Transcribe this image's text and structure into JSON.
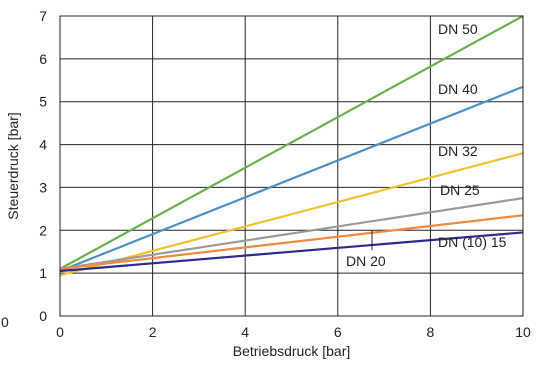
{
  "chart_data": {
    "type": "line",
    "xlabel": "Betriebsdruck [bar]",
    "ylabel": "Steuerdruck [bar]",
    "xlim": [
      0,
      10
    ],
    "ylim": [
      0,
      7
    ],
    "x_ticks": [
      0,
      2,
      4,
      6,
      8,
      10
    ],
    "y_ticks": [
      0,
      1,
      2,
      3,
      4,
      5,
      6,
      7
    ],
    "stray_tick_label": "0",
    "grid": true,
    "series": [
      {
        "name": "DN 50",
        "color": "#6ab04c",
        "x": [
          0,
          10
        ],
        "y": [
          1.1,
          7.0
        ]
      },
      {
        "name": "DN 40",
        "color": "#4a90c4",
        "x": [
          0,
          10
        ],
        "y": [
          1.05,
          5.35
        ]
      },
      {
        "name": "DN 32",
        "color": "#f2c12e",
        "x": [
          0,
          10
        ],
        "y": [
          0.95,
          3.8
        ]
      },
      {
        "name": "DN 25",
        "color": "#9a9a9a",
        "x": [
          0,
          10
        ],
        "y": [
          1.1,
          2.75
        ]
      },
      {
        "name": "DN 20",
        "color": "#f08a3e",
        "x": [
          0,
          10
        ],
        "y": [
          1.1,
          2.35
        ]
      },
      {
        "name": "DN (10) 15",
        "color": "#2f2a8a",
        "x": [
          0,
          10
        ],
        "y": [
          1.05,
          1.95
        ]
      }
    ]
  }
}
